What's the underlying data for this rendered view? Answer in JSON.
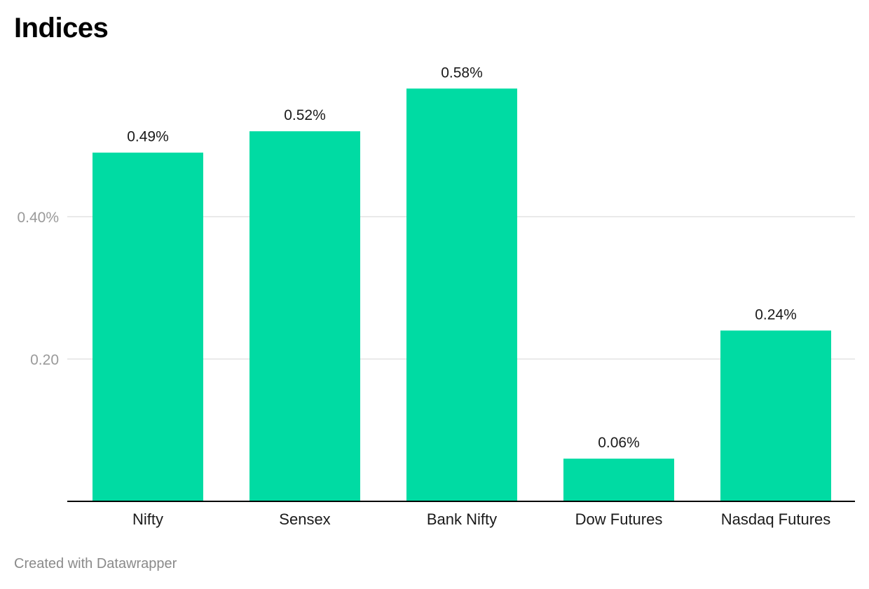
{
  "header": {
    "title": "Indices"
  },
  "footer": {
    "credit": "Created with Datawrapper"
  },
  "colors": {
    "bar": "#00dba3",
    "gridline": "#e3e3e3",
    "baseline": "#000000",
    "tick_label": "#9a9a9a",
    "value_label": "#1a1a1a",
    "category_label": "#1a1a1a"
  },
  "chart_data": {
    "type": "bar",
    "title": "Indices",
    "xlabel": "",
    "ylabel": "",
    "categories": [
      "Nifty",
      "Sensex",
      "Bank Nifty",
      "Dow Futures",
      "Nasdaq Futures"
    ],
    "values": [
      0.49,
      0.52,
      0.58,
      0.06,
      0.24
    ],
    "value_labels": [
      "0.49%",
      "0.52%",
      "0.58%",
      "0.06%",
      "0.24%"
    ],
    "yticks": [
      {
        "value": 0.2,
        "label": "0.20"
      },
      {
        "value": 0.4,
        "label": "0.40%"
      }
    ],
    "ylim": [
      0,
      0.6
    ],
    "grid": true,
    "legend": "none"
  }
}
